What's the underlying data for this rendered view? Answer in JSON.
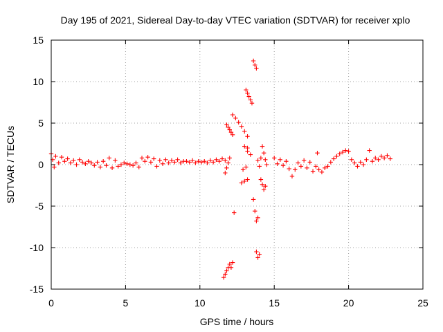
{
  "chart_data": {
    "type": "scatter",
    "title": "Day 195 of 2021, Sidereal Day-to-day VTEC variation (SDTVAR) for receiver xplo",
    "xlabel": "GPS time / hours",
    "ylabel": "SDTVAR / TECUs",
    "xlim": [
      0,
      25
    ],
    "ylim": [
      -15,
      15
    ],
    "x_ticks": [
      "0",
      "5",
      "10",
      "15",
      "20",
      "25"
    ],
    "y_ticks": [
      "15",
      "10",
      "5",
      "0",
      "-5",
      "-10",
      "-15"
    ],
    "grid": true,
    "marker": "+",
    "color": "#ff0000",
    "series": [
      {
        "name": "SDTVAR",
        "points": [
          [
            0.0,
            1.3
          ],
          [
            0.1,
            0.6
          ],
          [
            0.2,
            -0.3
          ],
          [
            0.3,
            1.0
          ],
          [
            0.5,
            0.2
          ],
          [
            0.7,
            0.9
          ],
          [
            0.9,
            0.4
          ],
          [
            1.1,
            0.7
          ],
          [
            1.3,
            0.2
          ],
          [
            1.5,
            0.5
          ],
          [
            1.7,
            0.0
          ],
          [
            1.9,
            0.6
          ],
          [
            2.1,
            0.3
          ],
          [
            2.3,
            0.1
          ],
          [
            2.5,
            0.4
          ],
          [
            2.7,
            0.2
          ],
          [
            2.9,
            -0.1
          ],
          [
            3.1,
            0.3
          ],
          [
            3.3,
            -0.3
          ],
          [
            3.5,
            0.4
          ],
          [
            3.7,
            -0.1
          ],
          [
            3.9,
            0.8
          ],
          [
            4.1,
            -0.4
          ],
          [
            4.3,
            0.5
          ],
          [
            4.5,
            -0.2
          ],
          [
            4.7,
            0.0
          ],
          [
            4.9,
            0.2
          ],
          [
            5.1,
            0.1
          ],
          [
            5.3,
            0.0
          ],
          [
            5.5,
            -0.1
          ],
          [
            5.7,
            0.2
          ],
          [
            5.9,
            -0.3
          ],
          [
            6.1,
            0.8
          ],
          [
            6.3,
            0.4
          ],
          [
            6.5,
            0.9
          ],
          [
            6.7,
            0.3
          ],
          [
            6.9,
            0.7
          ],
          [
            7.1,
            -0.2
          ],
          [
            7.3,
            0.5
          ],
          [
            7.5,
            0.1
          ],
          [
            7.7,
            0.6
          ],
          [
            7.9,
            0.2
          ],
          [
            8.1,
            0.5
          ],
          [
            8.3,
            0.3
          ],
          [
            8.5,
            0.6
          ],
          [
            8.7,
            0.2
          ],
          [
            8.9,
            0.4
          ],
          [
            9.1,
            0.4
          ],
          [
            9.3,
            0.3
          ],
          [
            9.5,
            0.5
          ],
          [
            9.7,
            0.2
          ],
          [
            9.9,
            0.4
          ],
          [
            10.1,
            0.3
          ],
          [
            10.3,
            0.4
          ],
          [
            10.5,
            0.2
          ],
          [
            10.7,
            0.5
          ],
          [
            10.9,
            0.3
          ],
          [
            11.1,
            0.6
          ],
          [
            11.3,
            0.4
          ],
          [
            11.5,
            0.7
          ],
          [
            11.7,
            0.5
          ],
          [
            11.6,
            -13.6
          ],
          [
            11.7,
            -13.2
          ],
          [
            11.8,
            -12.8
          ],
          [
            11.9,
            -12.4
          ],
          [
            12.0,
            -12.0
          ],
          [
            12.1,
            -12.4
          ],
          [
            12.2,
            -11.8
          ],
          [
            11.7,
            -1.0
          ],
          [
            11.8,
            -0.4
          ],
          [
            11.9,
            0.2
          ],
          [
            12.0,
            0.8
          ],
          [
            11.8,
            4.8
          ],
          [
            11.9,
            4.5
          ],
          [
            12.0,
            4.2
          ],
          [
            12.1,
            3.9
          ],
          [
            12.2,
            3.6
          ],
          [
            12.2,
            6.0
          ],
          [
            12.4,
            5.6
          ],
          [
            12.6,
            5.1
          ],
          [
            12.8,
            4.6
          ],
          [
            13.0,
            4.0
          ],
          [
            13.2,
            3.4
          ],
          [
            12.3,
            -5.8
          ],
          [
            12.8,
            -2.2
          ],
          [
            13.0,
            -2.0
          ],
          [
            13.2,
            -1.8
          ],
          [
            12.9,
            -0.6
          ],
          [
            13.1,
            -0.3
          ],
          [
            13.0,
            2.2
          ],
          [
            13.2,
            2.0
          ],
          [
            13.1,
            9.0
          ],
          [
            13.2,
            8.6
          ],
          [
            13.3,
            8.2
          ],
          [
            13.4,
            7.8
          ],
          [
            13.5,
            7.4
          ],
          [
            13.2,
            1.6
          ],
          [
            13.4,
            1.2
          ],
          [
            13.6,
            12.5
          ],
          [
            13.7,
            12.0
          ],
          [
            13.8,
            11.6
          ],
          [
            13.6,
            -4.2
          ],
          [
            13.7,
            -5.6
          ],
          [
            13.8,
            -6.8
          ],
          [
            13.9,
            -6.4
          ],
          [
            13.8,
            -10.5
          ],
          [
            13.9,
            -11.2
          ],
          [
            14.0,
            -10.8
          ],
          [
            13.9,
            0.5
          ],
          [
            14.0,
            -0.2
          ],
          [
            14.1,
            0.8
          ],
          [
            14.1,
            -1.8
          ],
          [
            14.2,
            -2.4
          ],
          [
            14.3,
            -3.0
          ],
          [
            14.4,
            -2.6
          ],
          [
            14.2,
            2.2
          ],
          [
            14.3,
            1.4
          ],
          [
            14.4,
            0.6
          ],
          [
            14.5,
            0.0
          ],
          [
            15.0,
            0.8
          ],
          [
            15.2,
            0.1
          ],
          [
            15.4,
            0.6
          ],
          [
            15.6,
            -0.1
          ],
          [
            15.8,
            0.4
          ],
          [
            16.0,
            -0.5
          ],
          [
            16.2,
            -1.4
          ],
          [
            16.4,
            -0.6
          ],
          [
            16.6,
            0.2
          ],
          [
            16.8,
            -0.2
          ],
          [
            17.0,
            0.5
          ],
          [
            17.2,
            -0.4
          ],
          [
            17.4,
            0.3
          ],
          [
            17.6,
            -0.8
          ],
          [
            17.8,
            -0.2
          ],
          [
            18.0,
            -0.6
          ],
          [
            18.2,
            -0.9
          ],
          [
            18.4,
            -0.4
          ],
          [
            18.6,
            -0.2
          ],
          [
            18.8,
            0.3
          ],
          [
            17.9,
            1.4
          ],
          [
            19.0,
            0.7
          ],
          [
            19.2,
            1.0
          ],
          [
            19.4,
            1.3
          ],
          [
            19.6,
            1.5
          ],
          [
            19.8,
            1.7
          ],
          [
            20.0,
            1.6
          ],
          [
            20.2,
            0.6
          ],
          [
            20.4,
            0.2
          ],
          [
            20.6,
            -0.2
          ],
          [
            20.8,
            0.3
          ],
          [
            21.0,
            0.0
          ],
          [
            21.2,
            0.6
          ],
          [
            21.4,
            1.7
          ],
          [
            21.6,
            0.4
          ],
          [
            21.8,
            0.8
          ],
          [
            22.0,
            0.6
          ],
          [
            22.2,
            1.0
          ],
          [
            22.4,
            0.8
          ],
          [
            22.6,
            1.1
          ],
          [
            22.8,
            0.7
          ]
        ]
      }
    ]
  }
}
